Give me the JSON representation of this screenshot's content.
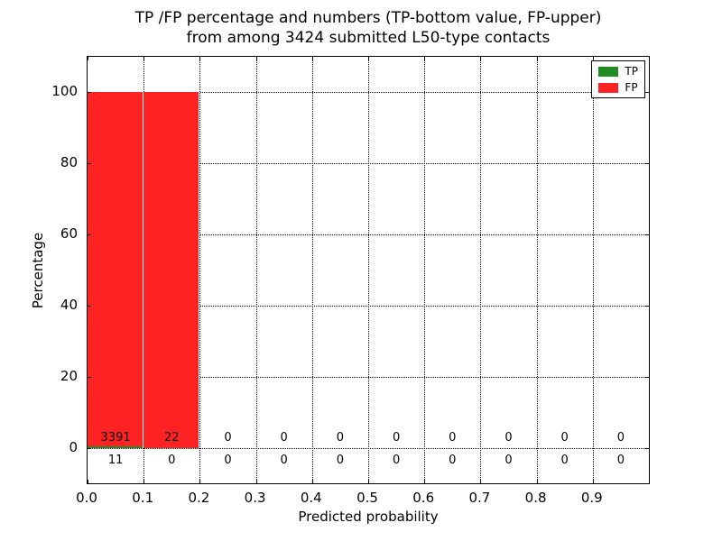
{
  "chart_data": {
    "type": "bar",
    "title_line1": "TP /FP percentage and numbers (TP-bottom value, FP-upper)",
    "title_line2": "from among 3424 submitted L50-type contacts",
    "xlabel": "Predicted probability",
    "ylabel": "Percentage",
    "xlim": [
      0.0,
      1.0
    ],
    "ylim": [
      -10,
      110
    ],
    "bin_width": 0.1,
    "x_ticks": [
      0.0,
      0.1,
      0.2,
      0.3,
      0.4,
      0.5,
      0.6,
      0.7,
      0.8,
      0.9
    ],
    "x_tick_labels": [
      "0.0",
      "0.1",
      "0.2",
      "0.3",
      "0.4",
      "0.5",
      "0.6",
      "0.7",
      "0.8",
      "0.9"
    ],
    "y_ticks": [
      0,
      20,
      40,
      60,
      80,
      100
    ],
    "y_tick_labels": [
      "0",
      "20",
      "40",
      "60",
      "80",
      "100"
    ],
    "grid": "dotted",
    "legend_position": "upper-right",
    "series": [
      {
        "name": "TP",
        "color": "#228b22",
        "percent": [
          0.3,
          0,
          0,
          0,
          0,
          0,
          0,
          0,
          0,
          0
        ],
        "counts": [
          "11",
          "0",
          "0",
          "0",
          "0",
          "0",
          "0",
          "0",
          "0",
          "0"
        ]
      },
      {
        "name": "FP",
        "color": "#ff2222",
        "percent": [
          99.7,
          100,
          0,
          0,
          0,
          0,
          0,
          0,
          0,
          0
        ],
        "counts": [
          "3391",
          "22",
          "0",
          "0",
          "0",
          "0",
          "0",
          "0",
          "0",
          "0"
        ]
      }
    ],
    "count_rows": {
      "fp_upper": [
        "3391",
        "22",
        "0",
        "0",
        "0",
        "0",
        "0",
        "0",
        "0",
        "0"
      ],
      "tp_bottom": [
        "11",
        "0",
        "0",
        "0",
        "0",
        "0",
        "0",
        "0",
        "0",
        "0"
      ]
    },
    "total_contacts": "3424"
  }
}
